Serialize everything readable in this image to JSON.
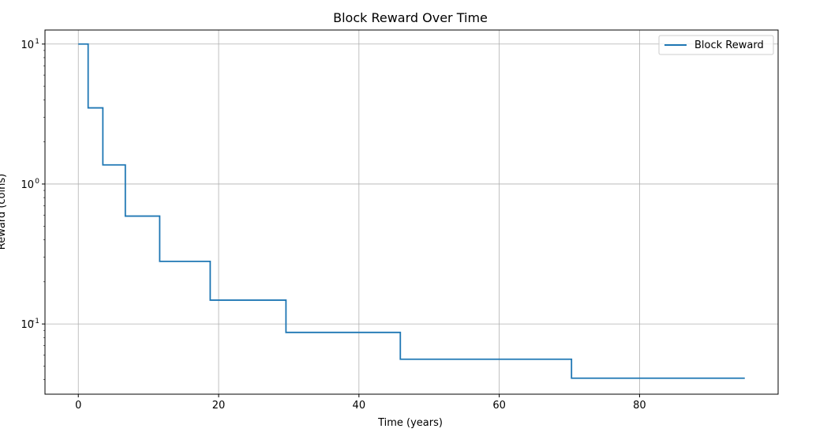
{
  "chart_data": {
    "type": "line",
    "title": "Block Reward Over Time",
    "xlabel": "Time (years)",
    "ylabel": "Reward (coins)",
    "xlim": [
      -4.75,
      99.75
    ],
    "ylim": [
      0.0315,
      12.6
    ],
    "yscale": "log",
    "grid": true,
    "legend_position": "top-right",
    "x_ticks": [
      0,
      20,
      40,
      60,
      80
    ],
    "x_tick_labels": [
      "0",
      "20",
      "40",
      "60",
      "80"
    ],
    "y_ticks": [
      0.1,
      1,
      10
    ],
    "y_tick_labels": [
      {
        "base": "10",
        "exp": "−1"
      },
      {
        "base": "10",
        "exp": "0"
      },
      {
        "base": "10",
        "exp": "1"
      }
    ],
    "series": [
      {
        "name": "Block Reward",
        "color": "#1f77b4",
        "step": "post",
        "points": [
          {
            "x": 0,
            "y": 10
          },
          {
            "x": 1.4,
            "y": 3.5
          },
          {
            "x": 3.5,
            "y": 1.37
          },
          {
            "x": 6.7,
            "y": 0.59
          },
          {
            "x": 11.6,
            "y": 0.28
          },
          {
            "x": 18.8,
            "y": 0.148
          },
          {
            "x": 29.6,
            "y": 0.087
          },
          {
            "x": 45.9,
            "y": 0.056
          },
          {
            "x": 70.3,
            "y": 0.041
          },
          {
            "x": 95.0,
            "y": 0.041
          }
        ]
      }
    ]
  }
}
